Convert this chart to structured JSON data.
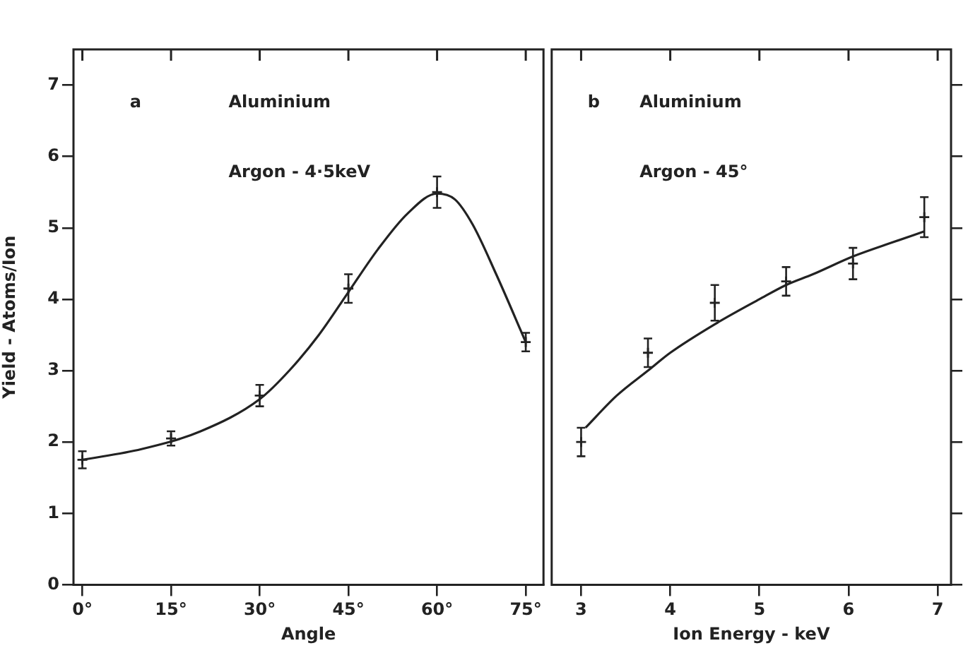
{
  "chart_data": [
    {
      "type": "scatter",
      "xlabel": "Angle",
      "ylabel": "Yield - Atoms/Ion",
      "annotations": [
        "a",
        "Aluminium",
        "Argon - 4·5keV"
      ],
      "xlim": [
        -1.5,
        78
      ],
      "xticks": [
        {
          "value": 0,
          "label": "0°"
        },
        {
          "value": 15,
          "label": "15°"
        },
        {
          "value": 30,
          "label": "30°"
        },
        {
          "value": 45,
          "label": "45°"
        },
        {
          "value": 60,
          "label": "60°"
        },
        {
          "value": 75,
          "label": "75°"
        }
      ],
      "ylim": [
        0,
        7.5
      ],
      "yticks": [
        0,
        1,
        2,
        3,
        4,
        5,
        6,
        7
      ],
      "series": [
        {
          "color": "#222222",
          "marker": "cross",
          "x": [
            0,
            15,
            30,
            45,
            60,
            75
          ],
          "values": [
            1.75,
            2.05,
            2.65,
            4.15,
            5.5,
            3.4
          ],
          "errors": [
            0.12,
            0.1,
            0.15,
            0.2,
            0.22,
            0.13
          ]
        },
        {
          "type": "line",
          "color": "#222222",
          "marker": "none",
          "x": [
            0,
            10,
            20,
            30,
            35,
            40,
            45,
            50,
            55,
            60,
            63,
            66,
            70,
            75
          ],
          "values": [
            1.75,
            1.9,
            2.15,
            2.6,
            3.0,
            3.5,
            4.1,
            4.7,
            5.2,
            5.48,
            5.4,
            5.05,
            4.35,
            3.4
          ]
        }
      ]
    },
    {
      "type": "scatter",
      "xlabel": "Ion Energy - keV",
      "annotations": [
        "b",
        "Aluminium",
        "Argon - 45°"
      ],
      "xlim": [
        2.67,
        7.15
      ],
      "xticks": [
        3,
        4,
        5,
        6,
        7
      ],
      "ylim": [
        0,
        7.5
      ],
      "yticks": [
        {
          "value": 0,
          "label": null
        },
        {
          "value": 1,
          "label": null
        },
        {
          "value": 2,
          "label": null
        },
        {
          "value": 3,
          "label": null
        },
        {
          "value": 4,
          "label": null
        },
        {
          "value": 5,
          "label": null
        },
        {
          "value": 6,
          "label": null
        },
        {
          "value": 7,
          "label": null
        }
      ],
      "tick_labels": "x",
      "series": [
        {
          "color": "#222222",
          "marker": "cross",
          "x": [
            3.0,
            3.75,
            4.5,
            5.3,
            6.05,
            6.85
          ],
          "values": [
            2.0,
            3.25,
            3.95,
            4.25,
            4.5,
            5.15
          ],
          "errors": [
            0.2,
            0.2,
            0.25,
            0.2,
            0.22,
            0.28
          ]
        },
        {
          "type": "line",
          "color": "#222222",
          "marker": "none",
          "x": [
            3.05,
            3.4,
            3.75,
            4.0,
            4.5,
            5.0,
            5.3,
            5.6,
            6.05,
            6.5,
            6.85
          ],
          "values": [
            2.2,
            2.65,
            3.0,
            3.25,
            3.65,
            4.0,
            4.2,
            4.35,
            4.6,
            4.8,
            4.95
          ]
        }
      ]
    }
  ]
}
